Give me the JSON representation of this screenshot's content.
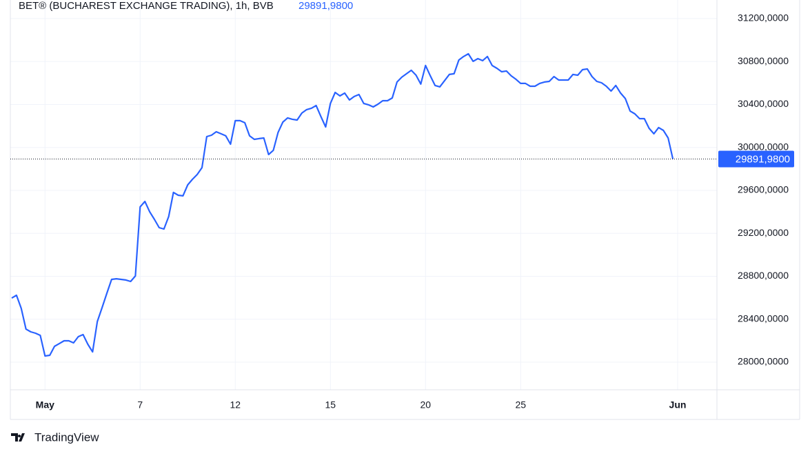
{
  "chart_data": {
    "type": "line",
    "title": "BET® (BUCHAREST EXCHANGE TRADING), 1h, BVB",
    "color": "#2962ff",
    "categories": [
      null,
      null,
      null,
      null,
      null,
      null,
      null,
      "May",
      null,
      null,
      null,
      null,
      null,
      null,
      null,
      null,
      null,
      null,
      null,
      null,
      null,
      null,
      null,
      null,
      null,
      null,
      null,
      "7",
      null,
      null,
      null,
      null,
      null,
      null,
      null,
      null,
      null,
      null,
      null,
      null,
      null,
      null,
      null,
      null,
      null,
      null,
      null,
      "12",
      null,
      null,
      null,
      null,
      null,
      null,
      null,
      null,
      null,
      null,
      null,
      null,
      null,
      null,
      null,
      null,
      null,
      null,
      null,
      "15",
      null,
      null,
      null,
      null,
      null,
      null,
      null,
      null,
      null,
      null,
      null,
      null,
      null,
      null,
      null,
      null,
      null,
      null,
      null,
      "20",
      null,
      null,
      null,
      null,
      null,
      null,
      null,
      null,
      null,
      null,
      null,
      null,
      null,
      null,
      null,
      null,
      null,
      null,
      null,
      "25",
      null,
      null,
      null,
      null,
      null,
      null,
      null,
      null,
      null,
      null,
      null,
      null,
      null,
      null,
      null,
      null,
      null,
      null,
      null,
      null,
      null,
      null,
      null,
      null,
      null,
      null,
      null,
      null,
      null,
      null,
      null,
      null,
      "Jun"
    ],
    "values": [
      28597,
      28623,
      28501,
      28308,
      28283,
      28270,
      28250,
      28058,
      28064,
      28148,
      28173,
      28199,
      28199,
      28180,
      28238,
      28257,
      28167,
      28096,
      28379,
      28508,
      28642,
      28771,
      28777,
      28771,
      28765,
      28752,
      28803,
      29446,
      29497,
      29401,
      29330,
      29253,
      29240,
      29356,
      29581,
      29555,
      29549,
      29651,
      29703,
      29748,
      29812,
      30101,
      30114,
      30146,
      30127,
      30108,
      30030,
      30249,
      30249,
      30230,
      30108,
      30075,
      30082,
      30088,
      29934,
      29973,
      30140,
      30236,
      30275,
      30262,
      30255,
      30320,
      30352,
      30365,
      30390,
      30288,
      30191,
      30410,
      30512,
      30480,
      30506,
      30442,
      30474,
      30493,
      30410,
      30397,
      30377,
      30403,
      30435,
      30435,
      30461,
      30609,
      30654,
      30686,
      30718,
      30673,
      30590,
      30763,
      30667,
      30577,
      30564,
      30622,
      30680,
      30686,
      30814,
      30847,
      30872,
      30802,
      30827,
      30808,
      30847,
      30763,
      30737,
      30705,
      30712,
      30667,
      30635,
      30596,
      30596,
      30570,
      30570,
      30596,
      30609,
      30615,
      30660,
      30628,
      30628,
      30628,
      30680,
      30673,
      30724,
      30731,
      30660,
      30615,
      30602,
      30570,
      30525,
      30577,
      30506,
      30455,
      30339,
      30313,
      30268,
      30268,
      30178,
      30127,
      30185,
      30159,
      30088,
      29891.98,
      null
    ],
    "last_price": {
      "value": 29891.98,
      "label": "29891,9800"
    },
    "ylim": [
      27743,
      31373
    ],
    "yticks": [
      {
        "value": 28000,
        "label": "28000,0000"
      },
      {
        "value": 28400,
        "label": "28400,0000"
      },
      {
        "value": 28800,
        "label": "28800,0000"
      },
      {
        "value": 29200,
        "label": "29200,0000"
      },
      {
        "value": 29600,
        "label": "29600,0000"
      },
      {
        "value": 30000,
        "label": "30000,0000"
      },
      {
        "value": 30400,
        "label": "30400,0000"
      },
      {
        "value": 30800,
        "label": "30800,0000"
      },
      {
        "value": 31200,
        "label": "31200,0000"
      }
    ],
    "grid": true,
    "brand": "TradingView"
  }
}
